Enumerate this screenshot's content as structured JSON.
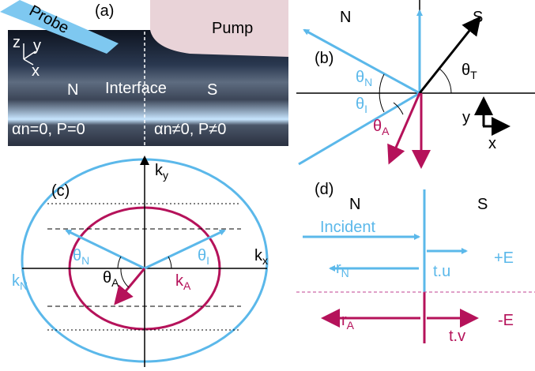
{
  "panel_a": {
    "label": "(a)",
    "probe": "Probe",
    "pump": "Pump",
    "axes": {
      "z": "z",
      "y": "y",
      "x": "x"
    },
    "left": "N",
    "interface": "Interface",
    "right": "S",
    "left_condition": "αn=0, P=0",
    "right_condition": "αn≠0, P≠0"
  },
  "panel_b": {
    "label": "(b)",
    "left": "N",
    "right": "S",
    "angles": [
      {
        "symbol": "θ",
        "sub": "N"
      },
      {
        "symbol": "θ",
        "sub": "I"
      },
      {
        "symbol": "θ",
        "sub": "A"
      },
      {
        "symbol": "θ",
        "sub": "T"
      }
    ],
    "axes": {
      "y": "y",
      "x": "x"
    }
  },
  "panel_c": {
    "label": "(c)",
    "ky": {
      "base": "k",
      "sub": "y"
    },
    "kx": {
      "base": "k",
      "sub": "x"
    },
    "angles": [
      {
        "symbol": "θ",
        "sub": "N"
      },
      {
        "symbol": "θ",
        "sub": "I"
      },
      {
        "symbol": "θ",
        "sub": "A"
      }
    ],
    "k_n": {
      "base": "k",
      "sub": "N"
    },
    "k_a": {
      "base": "k",
      "sub": "A"
    }
  },
  "panel_d": {
    "label": "(d)",
    "left": "N",
    "right": "S",
    "incident": "Incident",
    "r_n": {
      "base": "r",
      "sub": "N"
    },
    "t_u": "t.u",
    "plus_e": "+E",
    "r_a": {
      "base": "r",
      "sub": "A"
    },
    "t_v": "t.v",
    "minus_e": "-E"
  }
}
